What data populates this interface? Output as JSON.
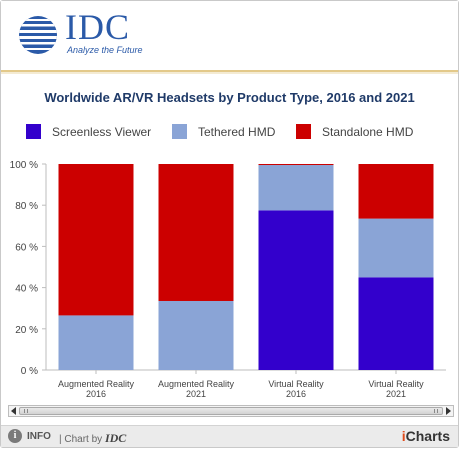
{
  "header": {
    "logo_text": "IDC",
    "tagline": "Analyze the Future"
  },
  "chart_data": {
    "type": "bar",
    "stacked": true,
    "title": "Worldwide AR/VR Headsets by Product Type, 2016 and 2021",
    "categories": [
      [
        "Augmented Reality",
        "2016"
      ],
      [
        "Augmented Reality",
        "2021"
      ],
      [
        "Virtual Reality",
        "2016"
      ],
      [
        "Virtual Reality",
        "2021"
      ]
    ],
    "series": [
      {
        "name": "Screenless Viewer",
        "color": "#3300cc",
        "values": [
          0,
          0,
          77.5,
          45
        ]
      },
      {
        "name": "Tethered HMD",
        "color": "#8aa4d6",
        "values": [
          26.5,
          33.5,
          22,
          28.5
        ]
      },
      {
        "name": "Standalone HMD",
        "color": "#cc0000",
        "values": [
          73.5,
          66.5,
          0.5,
          26.5
        ]
      }
    ],
    "ylim": [
      0,
      100
    ],
    "yticks": [
      "0 %",
      "20 %",
      "40 %",
      "60 %",
      "80 %",
      "100 %"
    ],
    "grid": false,
    "legend_position": "top"
  },
  "footer": {
    "info_label": "INFO",
    "chart_by": "| Chart by",
    "chart_by_brand": "IDC",
    "icharts_i": "i",
    "icharts_rest": "Charts"
  }
}
